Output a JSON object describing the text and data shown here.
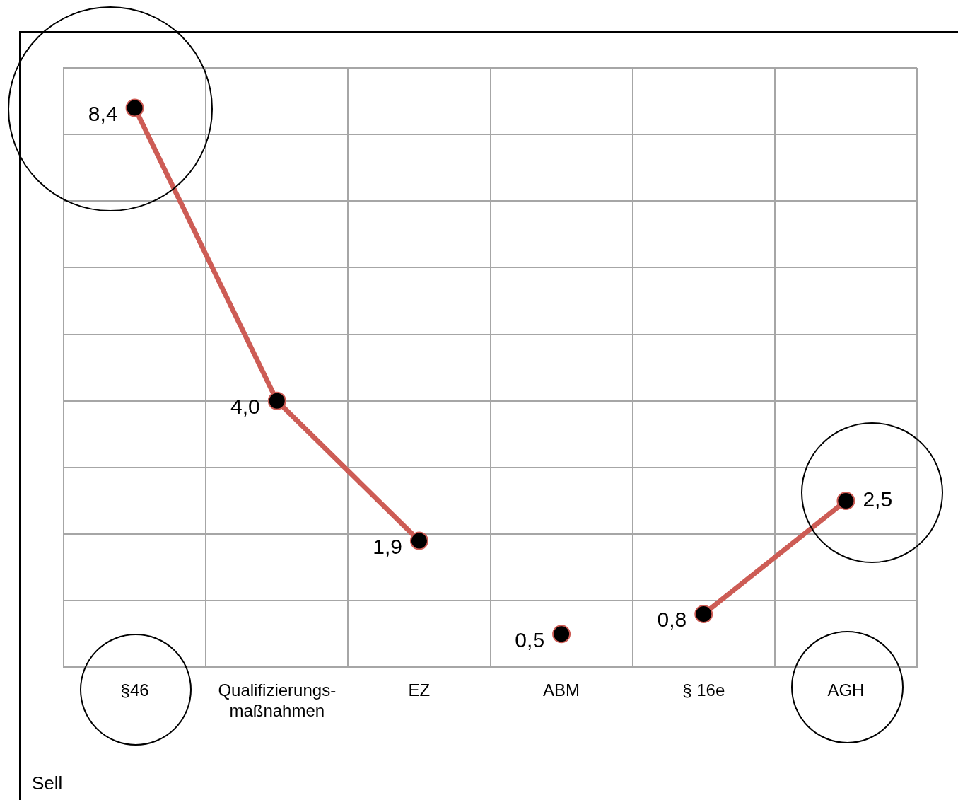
{
  "chart_data": {
    "type": "line",
    "categories": [
      "§46",
      "Qualifizierungs-\nmaßnahmen",
      "EZ",
      "ABM",
      "§ 16e",
      "AGH"
    ],
    "series": [
      {
        "color": "#cd5c55",
        "values": [
          8.4,
          4.0,
          1.9,
          null,
          null,
          null
        ],
        "value_labels": [
          "8,4",
          "4,0",
          "1,9",
          null,
          null,
          null
        ]
      },
      {
        "color": "#cd5c55",
        "values": [
          null,
          null,
          null,
          0.5,
          null,
          null
        ],
        "value_labels": [
          null,
          null,
          null,
          "0,5",
          null,
          null
        ]
      },
      {
        "color": "#cd5c55",
        "values": [
          null,
          null,
          null,
          null,
          0.8,
          2.5
        ],
        "value_labels": [
          null,
          null,
          null,
          null,
          "0,8",
          "2,5"
        ]
      }
    ],
    "ylim": [
      0,
      9
    ],
    "yticks": [
      {
        "value": 0,
        "label": null
      },
      {
        "value": 1,
        "label": null
      },
      {
        "value": 2,
        "label": null
      },
      {
        "value": 3,
        "label": null
      },
      {
        "value": 4,
        "label": null
      },
      {
        "value": 5,
        "label": null
      },
      {
        "value": 6,
        "label": null
      },
      {
        "value": 7,
        "label": null
      },
      {
        "value": 8,
        "label": null
      },
      {
        "value": 9,
        "label": null
      }
    ],
    "tick_labels": "x",
    "grid": true,
    "legend": false,
    "marker": "circle",
    "line_style": "solid",
    "annotations": [
      "Sell"
    ]
  }
}
